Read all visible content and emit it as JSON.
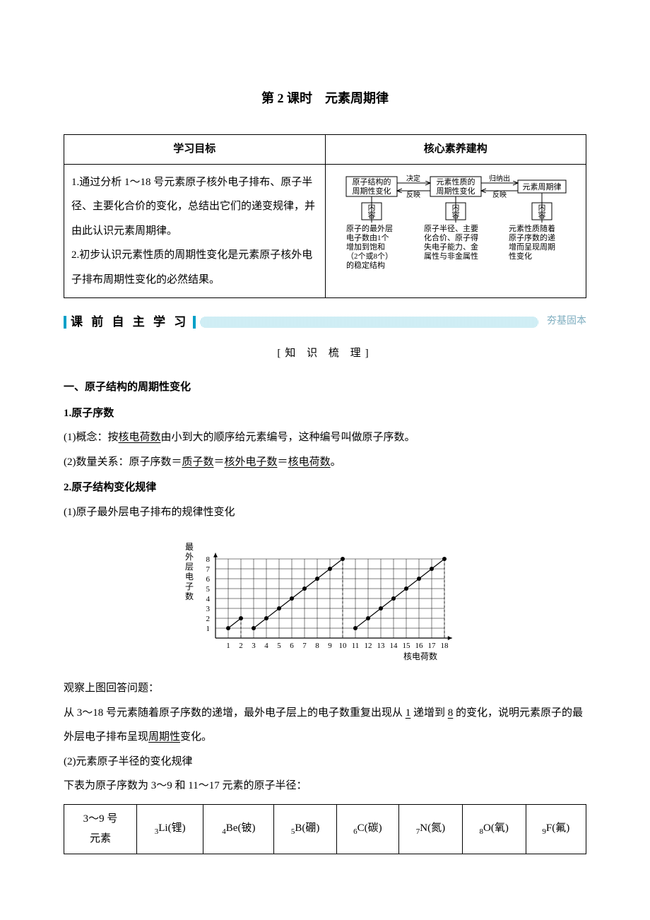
{
  "title": "第 2 课时　元素周期律",
  "goals_header_left": "学习目标",
  "goals_header_right": "核心素养建构",
  "goals_text_1": "1.通过分析 1～18 号元素原子核外电子排布、原子半径、主要化合价的变化，总结出它们的递变规律，并由此认识元素周期律。",
  "goals_text_2": "2.初步认识元素性质的周期性变化是元素原子核外电子排布周期性变化的必然结果。",
  "concept_diagram": {
    "row1": {
      "box1": "原子结构的\n周期性变化",
      "arrow1_top": "决定",
      "arrow1_bottom": "反映",
      "box2": "元素性质的\n周期性变化",
      "arrow2_top": "归纳出",
      "arrow2_bottom": "反映",
      "box3": "元素周期律"
    },
    "row2_label": "内容",
    "row2": {
      "col1": "原子的最外层\n电子数由1个\n增加到饱和\n（2个或8个）\n的稳定结构",
      "col2": "原子半径、主要\n化合价、原子得\n失电子能力、金\n属性与非金属性",
      "col3": "元素性质随着\n原子序数的递\n增而呈现周期\n性变化"
    }
  },
  "section_bar_label": "课 前 自 主 学 习",
  "section_bar_suffix": "夯基固本",
  "subheading": "[知 识 梳 理]",
  "h2_1": "一、原子结构的周期性变化",
  "h3_1": "1.原子序数",
  "p1_prefix": "(1)概念：按",
  "p1_u1": "核电荷数",
  "p1_suffix": "由小到大的顺序给元素编号，这种编号叫做原子序数。",
  "p2_prefix": "(2)数量关系：原子序数＝",
  "p2_u1": "质子数",
  "p2_mid1": "＝",
  "p2_u2": "核外电子数",
  "p2_mid2": "＝",
  "p2_u3": "核电荷数",
  "p2_suffix": "。",
  "h3_2": "2.原子结构变化规律",
  "p3": "(1)原子最外层电子排布的规律性变化",
  "chart": {
    "y_label": "最外层电子数",
    "x_label": "核电荷数",
    "x_ticks": [
      1,
      2,
      3,
      4,
      5,
      6,
      7,
      8,
      9,
      10,
      11,
      12,
      13,
      14,
      15,
      16,
      17,
      18
    ],
    "y_ticks": [
      1,
      2,
      3,
      4,
      5,
      6,
      7,
      8
    ],
    "xlim": [
      0,
      18.5
    ],
    "ylim": [
      0,
      8.5
    ],
    "x_step": 18,
    "y_step": 14,
    "grid_color": "#000000",
    "background": "#ffffff",
    "point_radius": 3,
    "line_width": 1.2,
    "points_seg1": [
      [
        1,
        1
      ],
      [
        2,
        2
      ]
    ],
    "points_seg2": [
      [
        3,
        1
      ],
      [
        4,
        2
      ],
      [
        5,
        3
      ],
      [
        6,
        4
      ],
      [
        7,
        5
      ],
      [
        8,
        6
      ],
      [
        9,
        7
      ],
      [
        10,
        8
      ]
    ],
    "points_seg3": [
      [
        11,
        1
      ],
      [
        12,
        2
      ],
      [
        13,
        3
      ],
      [
        14,
        4
      ],
      [
        15,
        5
      ],
      [
        16,
        6
      ],
      [
        17,
        7
      ],
      [
        18,
        8
      ]
    ],
    "drop_lines": [
      [
        2,
        2
      ],
      [
        10,
        8
      ],
      [
        18,
        8
      ]
    ]
  },
  "p4": "观察上图回答问题：",
  "p5_prefix": "从 3～18 号元素随着原子序数的递增，最外电子层上的电子数重复出现从 ",
  "p5_u1": "1",
  "p5_mid": " 递增到 ",
  "p5_u2": "8",
  "p5_mid2": " 的变化，说明元素原子的最外层电子排布呈现",
  "p5_u3": "周期性",
  "p5_suffix": "变化。",
  "p6": "(2)元素原子半径的变化规律",
  "p7": "下表为原子序数为 3～9 和 11～17 元素的原子半径：",
  "elements_table": {
    "row_label": "3～9 号\n元素",
    "cells": [
      {
        "sub": "3",
        "sym": "Li",
        "name": "锂"
      },
      {
        "sub": "4",
        "sym": "Be",
        "name": "铍"
      },
      {
        "sub": "5",
        "sym": "B",
        "name": "硼"
      },
      {
        "sub": "6",
        "sym": "C",
        "name": "碳"
      },
      {
        "sub": "7",
        "sym": "N",
        "name": "氮"
      },
      {
        "sub": "8",
        "sym": "O",
        "name": "氧"
      },
      {
        "sub": "9",
        "sym": "F",
        "name": "氟"
      }
    ]
  }
}
